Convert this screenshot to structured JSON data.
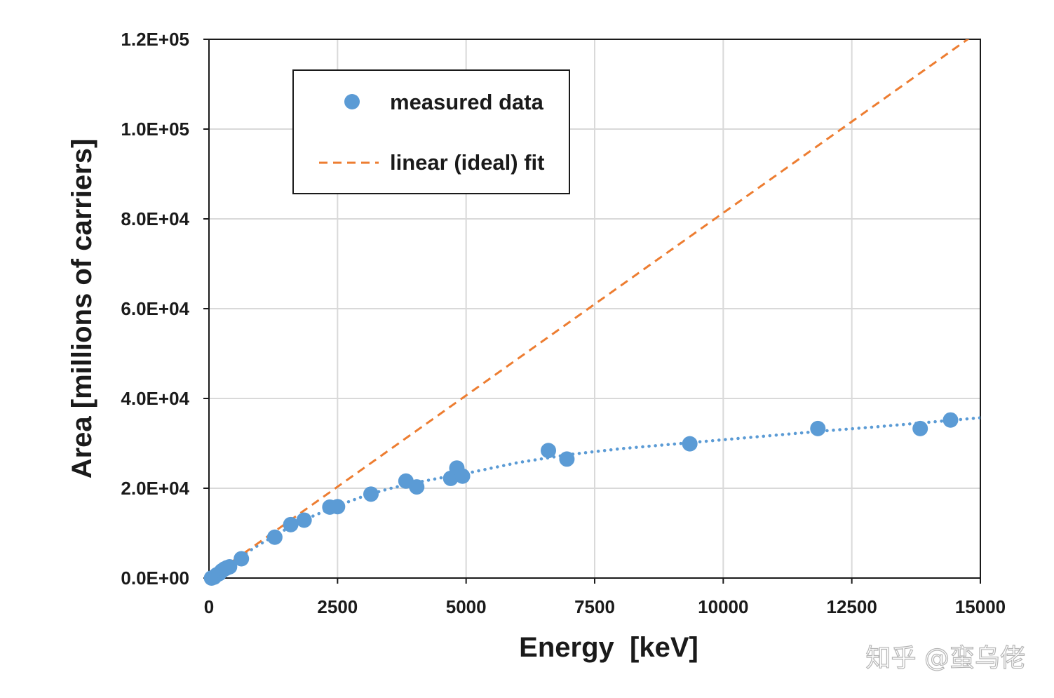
{
  "chart_data": {
    "type": "scatter",
    "title": "",
    "xlabel": "Energy  [keV]",
    "ylabel": "Area [millions of carriers]",
    "xlim": [
      0,
      15000
    ],
    "ylim": [
      0,
      120000
    ],
    "xticks": [
      0,
      2500,
      5000,
      7500,
      10000,
      12500,
      15000
    ],
    "xtick_labels": [
      "0",
      "2500",
      "5000",
      "7500",
      "10000",
      "12500",
      "15000"
    ],
    "yticks": [
      0,
      20000,
      40000,
      60000,
      80000,
      100000,
      120000
    ],
    "ytick_labels": [
      "0.0E+00",
      "2.0E+04",
      "4.0E+04",
      "6.0E+04",
      "8.0E+04",
      "1.0E+05",
      "1.2E+05"
    ],
    "grid": true,
    "legend_position": "top-left",
    "series": [
      {
        "name": "measured data",
        "kind": "scatter",
        "color": "#5b9bd5",
        "x": [
          50,
          100,
          150,
          200,
          250,
          300,
          350,
          400,
          630,
          1280,
          1590,
          1850,
          2350,
          2500,
          3150,
          3830,
          4040,
          4700,
          4820,
          4930,
          6600,
          6960,
          9350,
          11840,
          13830,
          14420
        ],
        "y": [
          0,
          200,
          700,
          1000,
          1600,
          2000,
          2300,
          2500,
          4300,
          9100,
          11900,
          12900,
          15800,
          15900,
          18700,
          21600,
          20300,
          22200,
          24500,
          22700,
          28400,
          26500,
          29900,
          33300,
          33300,
          35200
        ]
      },
      {
        "name": "trend (measured)",
        "kind": "dotted-line",
        "color": "#5b9bd5",
        "x": [
          0,
          500,
          1000,
          1500,
          2000,
          2500,
          3000,
          3500,
          4000,
          4500,
          5000,
          6000,
          7000,
          8000,
          9000,
          10000,
          11000,
          12000,
          13000,
          14000,
          15000
        ],
        "y": [
          0,
          3900,
          7600,
          10900,
          13700,
          16100,
          18200,
          19900,
          21200,
          22300,
          23300,
          25700,
          27500,
          28800,
          29800,
          30800,
          31800,
          32800,
          33700,
          34700,
          35700
        ]
      },
      {
        "name": "linear (ideal) fit",
        "kind": "dashed-line",
        "color": "#ed7d31",
        "x": [
          0,
          15000
        ],
        "y": [
          0,
          122000
        ]
      }
    ],
    "legend": [
      {
        "label": "measured data",
        "symbol": "circle",
        "color": "#5b9bd5"
      },
      {
        "label": "linear (ideal) fit",
        "symbol": "dash",
        "color": "#ed7d31"
      }
    ]
  },
  "watermark": "知乎 @蛮乌佬"
}
